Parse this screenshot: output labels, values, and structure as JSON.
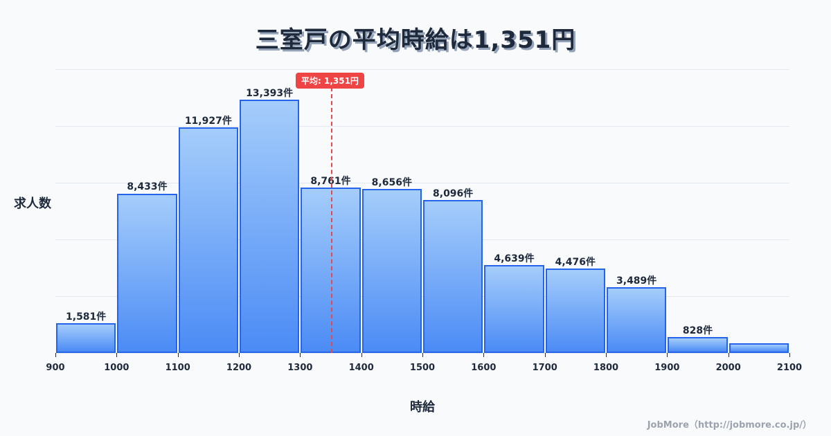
{
  "title": "三室戸の平均時給は1,351円",
  "y_axis_label": "求人数",
  "x_axis_label": "時給",
  "mean_badge": "平均: 1,351円",
  "credit": "JobMore（http://jobmore.co.jp/）",
  "x_ticks": [
    "900",
    "1000",
    "1100",
    "1200",
    "1300",
    "1400",
    "1500",
    "1600",
    "1700",
    "1800",
    "1900",
    "2000",
    "2100"
  ],
  "bars": [
    {
      "range": "900-1000",
      "value": 1581,
      "label": "1,581件"
    },
    {
      "range": "1000-1100",
      "value": 8433,
      "label": "8,433件"
    },
    {
      "range": "1100-1200",
      "value": 11927,
      "label": "11,927件"
    },
    {
      "range": "1200-1300",
      "value": 13393,
      "label": "13,393件"
    },
    {
      "range": "1300-1400",
      "value": 8761,
      "label": "8,761件"
    },
    {
      "range": "1400-1500",
      "value": 8656,
      "label": "8,656件"
    },
    {
      "range": "1500-1600",
      "value": 8096,
      "label": "8,096件"
    },
    {
      "range": "1600-1700",
      "value": 4639,
      "label": "4,639件"
    },
    {
      "range": "1700-1800",
      "value": 4476,
      "label": "4,476件"
    },
    {
      "range": "1800-1900",
      "value": 3489,
      "label": "3,489件"
    },
    {
      "range": "1900-2000",
      "value": 828,
      "label": "828件"
    },
    {
      "range": "2000-2100",
      "value": 500,
      "label": ""
    }
  ],
  "colors": {
    "bar_border": "#2563eb",
    "bar_top": "#a5cdfb",
    "bar_bottom": "#4b8bf5",
    "mean": "#ef4444",
    "text": "#1e293b"
  },
  "chart_data": {
    "type": "bar",
    "title": "三室戸の平均時給は1,351円",
    "xlabel": "時給",
    "ylabel": "求人数",
    "categories": [
      "900-1000",
      "1000-1100",
      "1100-1200",
      "1200-1300",
      "1300-1400",
      "1400-1500",
      "1500-1600",
      "1600-1700",
      "1700-1800",
      "1800-1900",
      "1900-2000",
      "2000-2100"
    ],
    "values": [
      1581,
      8433,
      11927,
      13393,
      8761,
      8656,
      8096,
      4639,
      4476,
      3489,
      828,
      500
    ],
    "x_ticks": [
      900,
      1000,
      1100,
      1200,
      1300,
      1400,
      1500,
      1600,
      1700,
      1800,
      1900,
      2000,
      2100
    ],
    "xlim": [
      900,
      2100
    ],
    "ylim": [
      0,
      15000
    ],
    "grid": true,
    "annotations": [
      {
        "type": "vline",
        "x": 1351,
        "label": "平均: 1,351円",
        "style": "dashed",
        "color": "#ef4444"
      }
    ],
    "value_suffix": "件"
  }
}
